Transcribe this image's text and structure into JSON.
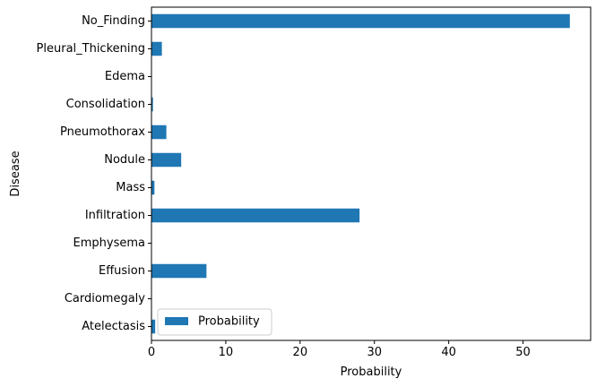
{
  "chart_data": {
    "type": "bar",
    "orientation": "horizontal",
    "categories": [
      "Atelectasis",
      "Cardiomegaly",
      "Effusion",
      "Emphysema",
      "Infiltration",
      "Mass",
      "Nodule",
      "Pneumothorax",
      "Consolidation",
      "Edema",
      "Pleural_Thickening",
      "No_Finding"
    ],
    "series": [
      {
        "name": "Probability",
        "values": [
          0.5,
          0.0,
          7.4,
          0.0,
          28.0,
          0.4,
          4.0,
          2.0,
          0.2,
          0.0,
          1.4,
          56.3
        ],
        "color": "#1f77b4"
      }
    ],
    "xlabel": "Probability",
    "ylabel": "Disease",
    "xticks": [
      "0",
      "10",
      "20",
      "30",
      "40",
      "50"
    ],
    "xlim": [
      0,
      59.1
    ],
    "grid": false,
    "legend": {
      "position": "lower left",
      "entries": [
        "Probability"
      ]
    }
  }
}
